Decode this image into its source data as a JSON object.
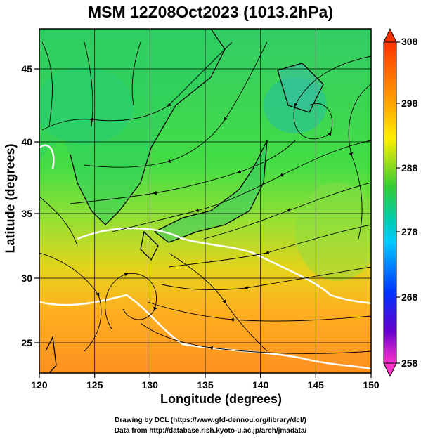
{
  "title": "MSM 12Z08Oct2023 (1013.2hPa)",
  "axes": {
    "xlabel": "Longitude (degrees)",
    "ylabel": "Latitude  (degrees)",
    "xticks": [
      "120",
      "125",
      "130",
      "135",
      "140",
      "145",
      "150"
    ],
    "yticks": [
      "25",
      "30",
      "35",
      "40",
      "45"
    ]
  },
  "colorbar": {
    "ticks": [
      "308",
      "298",
      "288",
      "278",
      "268",
      "258"
    ]
  },
  "credits": {
    "line1": "Drawing by DCL (https://www.gfd-dennou.org/library/dcl/)",
    "line2": "Data from http://database.rish.kyoto-u.ac.jp/arch/jmadata/"
  },
  "chart_data": {
    "type": "heatmap",
    "title": "MSM 12Z08Oct2023 (1013.2hPa)",
    "xlabel": "Longitude (degrees)",
    "ylabel": "Latitude  (degrees)",
    "xlim": [
      120,
      150
    ],
    "ylim": [
      22.4,
      47.6
    ],
    "color_range": [
      258,
      308
    ],
    "colors": {
      "cold": "#00c8ff",
      "cool": "#00cc66",
      "mid": "#33d94d",
      "warm": "#ffcc00",
      "hot": "#ff8800"
    }
  }
}
